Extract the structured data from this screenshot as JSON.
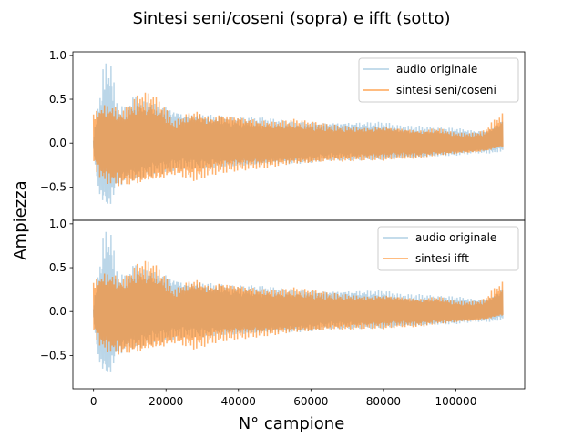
{
  "figure": {
    "title": "Sintesi seni/coseni (sopra) e ifft (sotto)",
    "xlabel": "N° campione",
    "ylabel": "Ampiezza"
  },
  "colors": {
    "original": "#1f77b4",
    "synthesis": "#ff7f0e"
  },
  "chart_data": [
    {
      "type": "line",
      "title": "",
      "xlim": [
        -5700,
        119000
      ],
      "ylim": [
        -0.88,
        1.04
      ],
      "xticks": [
        0,
        20000,
        40000,
        60000,
        80000,
        100000
      ],
      "xtick_labels": [
        "0",
        "20000",
        "40000",
        "60000",
        "80000",
        "100000"
      ],
      "show_xticks": false,
      "yticks": [
        -0.5,
        0.0,
        0.5,
        1.0
      ],
      "ytick_labels": [
        "−0.5",
        "0.0",
        "0.5",
        "1.0"
      ],
      "legend": "top-right",
      "grid": false,
      "series": [
        {
          "name": "audio originale",
          "alpha": 0.3,
          "x": [
            0,
            1000,
            2000,
            3000,
            4000,
            5000,
            6000,
            7000,
            8000,
            9000,
            10000,
            11000,
            12000,
            13000,
            14000,
            16000,
            18000,
            20000,
            22000,
            25000,
            30000,
            35000,
            40000,
            45000,
            50000,
            55000,
            60000,
            65000,
            70000,
            75000,
            80000,
            85000,
            90000,
            95000,
            100000,
            105000,
            108000,
            110000,
            112000,
            113000
          ],
          "upper": [
            0.05,
            0.4,
            0.6,
            1.0,
            0.85,
            0.95,
            0.55,
            0.4,
            0.45,
            0.4,
            0.5,
            0.55,
            0.55,
            0.5,
            0.5,
            0.5,
            0.45,
            0.45,
            0.4,
            0.35,
            0.35,
            0.32,
            0.3,
            0.3,
            0.28,
            0.25,
            0.25,
            0.25,
            0.25,
            0.25,
            0.25,
            0.2,
            0.2,
            0.18,
            0.18,
            0.15,
            0.15,
            0.18,
            0.25,
            0.3
          ],
          "lower": [
            -0.05,
            -0.5,
            -0.7,
            -0.75,
            -0.8,
            -0.72,
            -0.6,
            -0.5,
            -0.5,
            -0.45,
            -0.42,
            -0.45,
            -0.45,
            -0.42,
            -0.4,
            -0.38,
            -0.35,
            -0.35,
            -0.32,
            -0.3,
            -0.3,
            -0.28,
            -0.28,
            -0.27,
            -0.25,
            -0.25,
            -0.23,
            -0.2,
            -0.2,
            -0.2,
            -0.2,
            -0.18,
            -0.18,
            -0.16,
            -0.15,
            -0.12,
            -0.12,
            -0.12,
            -0.1,
            -0.1
          ]
        },
        {
          "name": "sintesi seni/coseni",
          "alpha": 0.6,
          "x": [
            0,
            1000,
            2000,
            3000,
            4000,
            6000,
            8000,
            10000,
            12000,
            14000,
            16000,
            18000,
            20000,
            22000,
            24000,
            26000,
            28000,
            30000,
            32000,
            35000,
            40000,
            45000,
            50000,
            55000,
            60000,
            65000,
            70000,
            75000,
            80000,
            85000,
            90000,
            95000,
            100000,
            105000,
            108000,
            110000,
            112000,
            113000
          ],
          "upper": [
            0.35,
            0.4,
            0.42,
            0.45,
            0.45,
            0.42,
            0.38,
            0.45,
            0.55,
            0.58,
            0.58,
            0.5,
            0.4,
            0.25,
            0.3,
            0.35,
            0.38,
            0.35,
            0.3,
            0.35,
            0.32,
            0.28,
            0.25,
            0.28,
            0.25,
            0.22,
            0.2,
            0.18,
            0.2,
            0.18,
            0.15,
            0.18,
            0.12,
            0.12,
            0.15,
            0.25,
            0.32,
            0.35
          ],
          "lower": [
            -0.22,
            -0.35,
            -0.42,
            -0.45,
            -0.48,
            -0.5,
            -0.52,
            -0.5,
            -0.5,
            -0.48,
            -0.45,
            -0.45,
            -0.42,
            -0.38,
            -0.4,
            -0.42,
            -0.45,
            -0.42,
            -0.38,
            -0.35,
            -0.32,
            -0.3,
            -0.28,
            -0.25,
            -0.25,
            -0.22,
            -0.22,
            -0.2,
            -0.2,
            -0.18,
            -0.18,
            -0.15,
            -0.13,
            -0.12,
            -0.1,
            -0.08,
            -0.05,
            -0.05
          ]
        }
      ]
    },
    {
      "type": "line",
      "title": "",
      "xlim": [
        -5700,
        119000
      ],
      "ylim": [
        -0.88,
        1.04
      ],
      "xticks": [
        0,
        20000,
        40000,
        60000,
        80000,
        100000
      ],
      "xtick_labels": [
        "0",
        "20000",
        "40000",
        "60000",
        "80000",
        "100000"
      ],
      "show_xticks": true,
      "yticks": [
        -0.5,
        0.0,
        0.5,
        1.0
      ],
      "ytick_labels": [
        "−0.5",
        "0.0",
        "0.5",
        "1.0"
      ],
      "legend": "top-right",
      "grid": false,
      "series": [
        {
          "name": "audio originale",
          "alpha": 0.3,
          "x": [
            0,
            1000,
            2000,
            3000,
            4000,
            5000,
            6000,
            7000,
            8000,
            9000,
            10000,
            11000,
            12000,
            13000,
            14000,
            16000,
            18000,
            20000,
            22000,
            25000,
            30000,
            35000,
            40000,
            45000,
            50000,
            55000,
            60000,
            65000,
            70000,
            75000,
            80000,
            85000,
            90000,
            95000,
            100000,
            105000,
            108000,
            110000,
            112000,
            113000
          ],
          "upper": [
            0.05,
            0.4,
            0.6,
            1.0,
            0.85,
            0.95,
            0.55,
            0.4,
            0.45,
            0.4,
            0.5,
            0.55,
            0.55,
            0.5,
            0.5,
            0.5,
            0.45,
            0.45,
            0.4,
            0.35,
            0.35,
            0.32,
            0.3,
            0.3,
            0.28,
            0.25,
            0.25,
            0.25,
            0.25,
            0.25,
            0.25,
            0.2,
            0.2,
            0.18,
            0.18,
            0.15,
            0.15,
            0.18,
            0.25,
            0.3
          ],
          "lower": [
            -0.05,
            -0.5,
            -0.7,
            -0.75,
            -0.8,
            -0.72,
            -0.6,
            -0.5,
            -0.5,
            -0.45,
            -0.42,
            -0.45,
            -0.45,
            -0.42,
            -0.4,
            -0.38,
            -0.35,
            -0.35,
            -0.32,
            -0.3,
            -0.3,
            -0.28,
            -0.28,
            -0.27,
            -0.25,
            -0.25,
            -0.23,
            -0.2,
            -0.2,
            -0.2,
            -0.2,
            -0.18,
            -0.18,
            -0.16,
            -0.15,
            -0.12,
            -0.12,
            -0.12,
            -0.1,
            -0.1
          ]
        },
        {
          "name": "sintesi ifft",
          "alpha": 0.6,
          "x": [
            0,
            1000,
            2000,
            3000,
            4000,
            6000,
            8000,
            10000,
            12000,
            14000,
            16000,
            18000,
            20000,
            22000,
            24000,
            26000,
            28000,
            30000,
            32000,
            35000,
            40000,
            45000,
            50000,
            55000,
            60000,
            65000,
            70000,
            75000,
            80000,
            85000,
            90000,
            95000,
            100000,
            105000,
            108000,
            110000,
            112000,
            113000
          ],
          "upper": [
            0.35,
            0.4,
            0.42,
            0.45,
            0.45,
            0.42,
            0.38,
            0.45,
            0.55,
            0.58,
            0.58,
            0.5,
            0.4,
            0.25,
            0.3,
            0.35,
            0.38,
            0.35,
            0.3,
            0.35,
            0.32,
            0.28,
            0.25,
            0.28,
            0.25,
            0.22,
            0.2,
            0.18,
            0.2,
            0.18,
            0.15,
            0.18,
            0.12,
            0.12,
            0.15,
            0.25,
            0.32,
            0.35
          ],
          "lower": [
            -0.22,
            -0.35,
            -0.42,
            -0.45,
            -0.48,
            -0.5,
            -0.52,
            -0.5,
            -0.5,
            -0.48,
            -0.45,
            -0.45,
            -0.42,
            -0.38,
            -0.4,
            -0.42,
            -0.45,
            -0.42,
            -0.38,
            -0.35,
            -0.32,
            -0.3,
            -0.28,
            -0.25,
            -0.25,
            -0.22,
            -0.22,
            -0.2,
            -0.2,
            -0.18,
            -0.18,
            -0.15,
            -0.13,
            -0.12,
            -0.1,
            -0.08,
            -0.05,
            -0.05
          ]
        }
      ]
    }
  ]
}
